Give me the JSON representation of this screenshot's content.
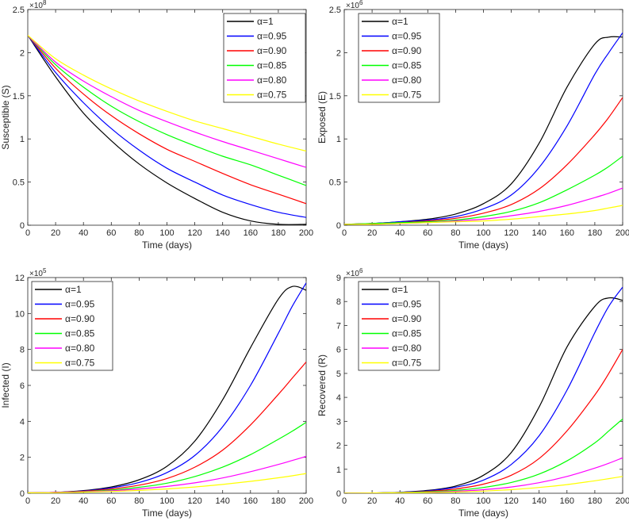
{
  "chart_data": [
    {
      "type": "line",
      "xlabel": "Time (days)",
      "ylabel": "Susceptible (S)",
      "exponent": "×10",
      "exponent_power": "8",
      "xlim": [
        0,
        200
      ],
      "ylim": [
        0,
        2.5
      ],
      "xticks": [
        "0",
        "20",
        "40",
        "60",
        "80",
        "100",
        "120",
        "140",
        "160",
        "180",
        "200"
      ],
      "yticks": [
        "0",
        "0.5",
        "1",
        "1.5",
        "2",
        "2.5"
      ],
      "ytick_values": [
        0,
        0.5,
        1,
        1.5,
        2,
        2.5
      ],
      "legend_position": "top-right",
      "x": [
        0,
        20,
        40,
        60,
        80,
        100,
        120,
        140,
        160,
        180,
        200
      ],
      "series": [
        {
          "name": "α=1",
          "color": "#000000",
          "values": [
            2.2,
            1.72,
            1.3,
            0.98,
            0.71,
            0.49,
            0.31,
            0.15,
            0.05,
            0.01,
            0.01
          ]
        },
        {
          "name": "α=0.95",
          "color": "#0000ff",
          "values": [
            2.2,
            1.77,
            1.42,
            1.12,
            0.87,
            0.66,
            0.5,
            0.35,
            0.24,
            0.15,
            0.09
          ]
        },
        {
          "name": "α=0.90",
          "color": "#ff0000",
          "values": [
            2.2,
            1.82,
            1.52,
            1.27,
            1.06,
            0.88,
            0.74,
            0.6,
            0.47,
            0.36,
            0.25
          ]
        },
        {
          "name": "α=0.85",
          "color": "#00ff00",
          "values": [
            2.2,
            1.86,
            1.6,
            1.38,
            1.2,
            1.05,
            0.92,
            0.8,
            0.7,
            0.58,
            0.46
          ]
        },
        {
          "name": "α=0.80",
          "color": "#ff00ff",
          "values": [
            2.2,
            1.89,
            1.67,
            1.49,
            1.33,
            1.2,
            1.08,
            0.97,
            0.87,
            0.77,
            0.67
          ]
        },
        {
          "name": "α=0.75",
          "color": "#ffff00",
          "values": [
            2.2,
            1.93,
            1.74,
            1.58,
            1.44,
            1.32,
            1.21,
            1.12,
            1.03,
            0.94,
            0.86
          ]
        }
      ]
    },
    {
      "type": "line",
      "xlabel": "Time (days)",
      "ylabel": "Exposed (E)",
      "exponent": "×10",
      "exponent_power": "6",
      "xlim": [
        0,
        200
      ],
      "ylim": [
        0,
        2.5
      ],
      "xticks": [
        "0",
        "20",
        "40",
        "60",
        "80",
        "100",
        "120",
        "140",
        "160",
        "180",
        "200"
      ],
      "yticks": [
        "0",
        "0.5",
        "1",
        "1.5",
        "2",
        "2.5"
      ],
      "ytick_values": [
        0,
        0.5,
        1,
        1.5,
        2,
        2.5
      ],
      "legend_position": "top-left",
      "x": [
        0,
        20,
        40,
        60,
        80,
        100,
        120,
        140,
        160,
        180,
        190,
        200
      ],
      "series": [
        {
          "name": "α=1",
          "color": "#000000",
          "values": [
            0.01,
            0.02,
            0.04,
            0.07,
            0.13,
            0.25,
            0.48,
            0.95,
            1.6,
            2.1,
            2.18,
            2.18
          ]
        },
        {
          "name": "α=0.95",
          "color": "#0000ff",
          "values": [
            0.01,
            0.02,
            0.04,
            0.06,
            0.1,
            0.19,
            0.35,
            0.67,
            1.15,
            1.75,
            2.0,
            2.23
          ]
        },
        {
          "name": "α=0.90",
          "color": "#ff0000",
          "values": [
            0.01,
            0.02,
            0.03,
            0.05,
            0.08,
            0.14,
            0.24,
            0.42,
            0.7,
            1.05,
            1.25,
            1.48
          ]
        },
        {
          "name": "α=0.85",
          "color": "#00ff00",
          "values": [
            0.01,
            0.02,
            0.03,
            0.04,
            0.06,
            0.1,
            0.16,
            0.26,
            0.41,
            0.58,
            0.68,
            0.8
          ]
        },
        {
          "name": "α=0.80",
          "color": "#ff00ff",
          "values": [
            0.01,
            0.01,
            0.02,
            0.03,
            0.05,
            0.07,
            0.11,
            0.16,
            0.23,
            0.32,
            0.37,
            0.43
          ]
        },
        {
          "name": "α=0.75",
          "color": "#ffff00",
          "values": [
            0.01,
            0.01,
            0.02,
            0.03,
            0.04,
            0.05,
            0.07,
            0.1,
            0.13,
            0.17,
            0.2,
            0.23
          ]
        }
      ]
    },
    {
      "type": "line",
      "xlabel": "Time (days)",
      "ylabel": "Infected (I)",
      "exponent": "×10",
      "exponent_power": "5",
      "xlim": [
        0,
        200
      ],
      "ylim": [
        0,
        12
      ],
      "xticks": [
        "0",
        "20",
        "40",
        "60",
        "80",
        "100",
        "120",
        "140",
        "160",
        "180",
        "200"
      ],
      "yticks": [
        "0",
        "2",
        "4",
        "6",
        "8",
        "10",
        "12"
      ],
      "ytick_values": [
        0,
        2,
        4,
        6,
        8,
        10,
        12
      ],
      "legend_position": "top-left",
      "x": [
        0,
        20,
        40,
        60,
        80,
        100,
        120,
        140,
        160,
        180,
        190,
        200
      ],
      "series": [
        {
          "name": "α=1",
          "color": "#000000",
          "values": [
            0.02,
            0.05,
            0.15,
            0.35,
            0.75,
            1.5,
            2.9,
            5.2,
            8.1,
            10.8,
            11.5,
            11.3
          ]
        },
        {
          "name": "α=0.95",
          "color": "#0000ff",
          "values": [
            0.02,
            0.05,
            0.13,
            0.3,
            0.6,
            1.15,
            2.1,
            3.7,
            6.0,
            8.9,
            10.4,
            11.7
          ]
        },
        {
          "name": "α=0.90",
          "color": "#ff0000",
          "values": [
            0.02,
            0.05,
            0.11,
            0.24,
            0.45,
            0.82,
            1.45,
            2.4,
            3.8,
            5.5,
            6.4,
            7.3
          ]
        },
        {
          "name": "α=0.85",
          "color": "#00ff00",
          "values": [
            0.02,
            0.04,
            0.09,
            0.18,
            0.33,
            0.56,
            0.93,
            1.45,
            2.15,
            3.0,
            3.45,
            3.95
          ]
        },
        {
          "name": "α=0.80",
          "color": "#ff00ff",
          "values": [
            0.02,
            0.04,
            0.08,
            0.14,
            0.24,
            0.38,
            0.58,
            0.85,
            1.2,
            1.6,
            1.82,
            2.05
          ]
        },
        {
          "name": "α=0.75",
          "color": "#ffff00",
          "values": [
            0.02,
            0.03,
            0.06,
            0.1,
            0.16,
            0.24,
            0.35,
            0.49,
            0.66,
            0.86,
            0.97,
            1.1
          ]
        }
      ]
    },
    {
      "type": "line",
      "xlabel": "Time (days)",
      "ylabel": "Recovered (R)",
      "exponent": "×10",
      "exponent_power": "6",
      "xlim": [
        0,
        200
      ],
      "ylim": [
        0,
        9
      ],
      "xticks": [
        "0",
        "20",
        "40",
        "60",
        "80",
        "100",
        "120",
        "140",
        "160",
        "180",
        "200"
      ],
      "yticks": [
        "0",
        "1",
        "2",
        "3",
        "4",
        "5",
        "6",
        "7",
        "8",
        "9"
      ],
      "ytick_values": [
        0,
        1,
        2,
        3,
        4,
        5,
        6,
        7,
        8,
        9
      ],
      "legend_position": "top-left",
      "x": [
        0,
        20,
        40,
        60,
        80,
        100,
        120,
        140,
        160,
        180,
        190,
        200
      ],
      "series": [
        {
          "name": "α=1",
          "color": "#000000",
          "values": [
            0,
            0.01,
            0.04,
            0.12,
            0.3,
            0.75,
            1.7,
            3.6,
            6.1,
            7.8,
            8.15,
            8.05
          ]
        },
        {
          "name": "α=0.95",
          "color": "#0000ff",
          "values": [
            0,
            0.01,
            0.04,
            0.1,
            0.25,
            0.55,
            1.2,
            2.4,
            4.3,
            6.7,
            7.8,
            8.6
          ]
        },
        {
          "name": "α=0.90",
          "color": "#ff0000",
          "values": [
            0,
            0.01,
            0.03,
            0.08,
            0.18,
            0.38,
            0.75,
            1.45,
            2.6,
            4.1,
            5.0,
            6.0
          ]
        },
        {
          "name": "α=0.85",
          "color": "#00ff00",
          "values": [
            0,
            0.01,
            0.03,
            0.06,
            0.12,
            0.24,
            0.45,
            0.8,
            1.35,
            2.1,
            2.6,
            3.1
          ]
        },
        {
          "name": "α=0.80",
          "color": "#ff00ff",
          "values": [
            0,
            0.01,
            0.02,
            0.04,
            0.08,
            0.15,
            0.26,
            0.44,
            0.7,
            1.05,
            1.25,
            1.48
          ]
        },
        {
          "name": "α=0.75",
          "color": "#ffff00",
          "values": [
            0,
            0.01,
            0.02,
            0.03,
            0.05,
            0.09,
            0.15,
            0.24,
            0.36,
            0.52,
            0.61,
            0.7
          ]
        }
      ]
    }
  ]
}
